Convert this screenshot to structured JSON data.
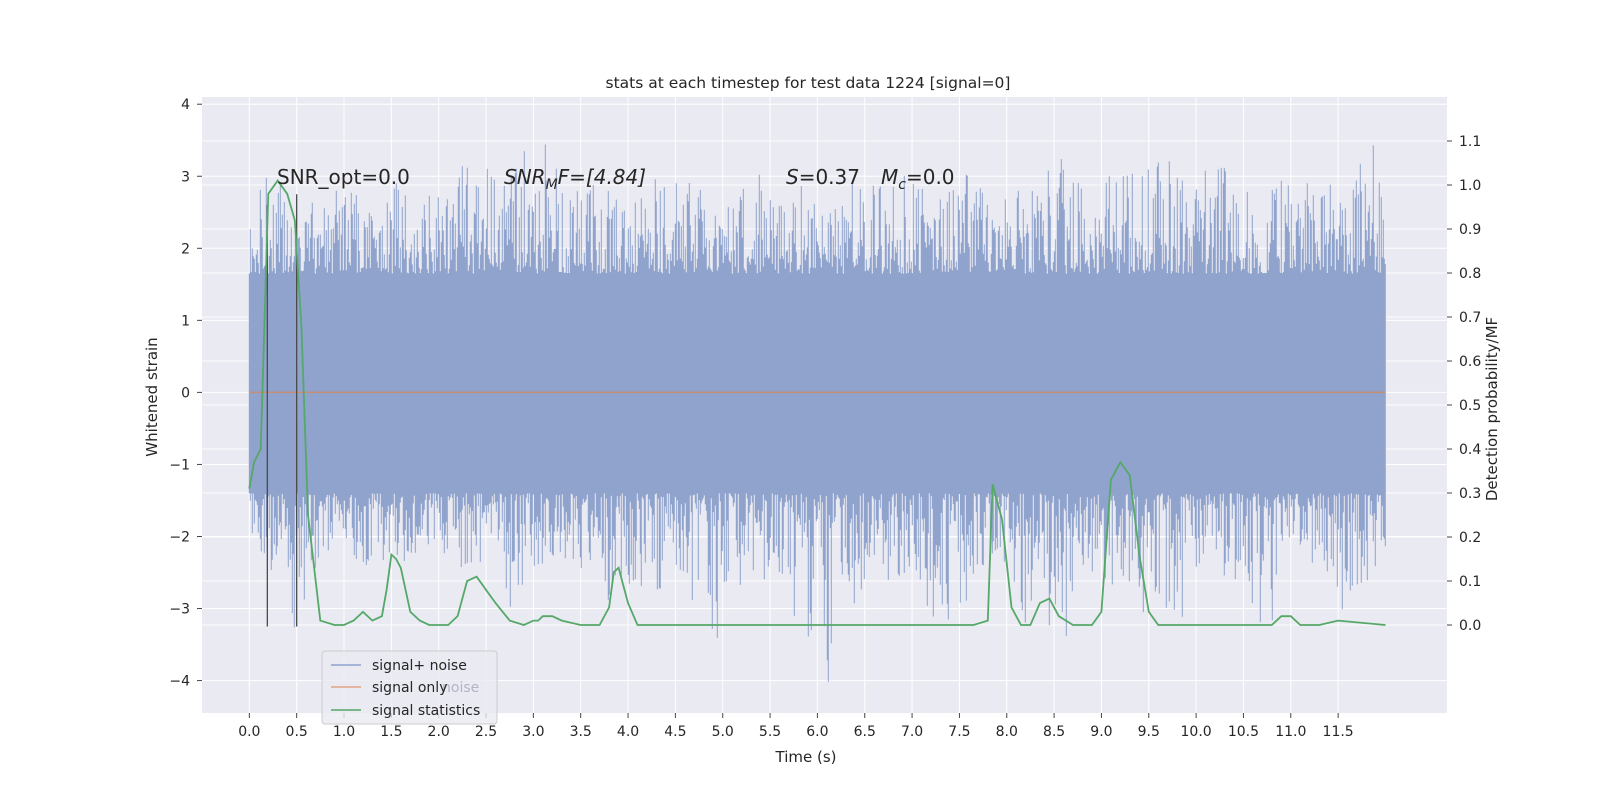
{
  "chart_data": {
    "type": "line",
    "title": "stats at each timestep for test data 1224 [signal=0]",
    "xlabel": "Time (s)",
    "ylabel_left": "Whitened strain",
    "ylabel_right": "Detection probability/MF",
    "xlim": [
      -0.5,
      12.65
    ],
    "ylim_left": [
      -4.45,
      4.1
    ],
    "ylim_right": [
      -0.2,
      1.2
    ],
    "xticks": [
      0.0,
      0.5,
      1.0,
      1.5,
      2.0,
      2.5,
      3.0,
      3.5,
      4.0,
      4.5,
      5.0,
      5.5,
      6.0,
      6.5,
      7.0,
      7.5,
      8.0,
      8.5,
      9.0,
      9.5,
      10.0,
      10.5,
      11.0,
      11.5
    ],
    "xtick_labels": [
      "0.0",
      "0.5",
      "1.0",
      "1.5",
      "2.0",
      "2.5",
      "3.0",
      "3.5",
      "4.0",
      "4.5",
      "5.0",
      "5.5",
      "6.0",
      "6.5",
      "7.0",
      "7.5",
      "8.0",
      "8.5",
      "9.0",
      "9.5",
      "10.0",
      "10.5",
      "11.0",
      "11.5"
    ],
    "yticks_left": [
      -4,
      -3,
      -2,
      -1,
      0,
      1,
      2,
      3,
      4
    ],
    "ytick_labels_left": [
      "−4",
      "−3",
      "−2",
      "−1",
      "0",
      "1",
      "2",
      "3",
      "4"
    ],
    "yticks_right": [
      0.0,
      0.1,
      0.2,
      0.3,
      0.4,
      0.5,
      0.6,
      0.7,
      0.8,
      0.9,
      1.0,
      1.1
    ],
    "ytick_labels_right": [
      "0.0",
      "0.1",
      "0.2",
      "0.3",
      "0.4",
      "0.5",
      "0.6",
      "0.7",
      "0.8",
      "0.9",
      "1.0",
      "1.1"
    ],
    "grid": true,
    "legend_placement": "lower-left",
    "legend": [
      "signal+ noise",
      "signal only",
      "signal statistics"
    ],
    "legend_ghost_text": "noise",
    "annotations": {
      "snr_opt": "SNR_opt=0.0",
      "snr_mf_pre": "SNR",
      "snr_mf_sub": "M",
      "snr_mf_post": "F=[4.84]",
      "s_var": "S",
      "s_val": "=0.37",
      "mc_var": "M",
      "mc_sub": "c",
      "mc_val": "=0.0"
    },
    "series": [
      {
        "name": "signal+ noise",
        "axis": "left",
        "color": "#8fa3cc",
        "x_range": [
          0.0,
          12.0
        ],
        "band": {
          "lower": -1.4,
          "upper": 1.65
        },
        "upper_envelope": [
          [
            0.0,
            2.4
          ],
          [
            0.12,
            3.05
          ],
          [
            0.3,
            3.1
          ],
          [
            0.45,
            2.75
          ],
          [
            0.8,
            2.6
          ],
          [
            1.0,
            3.0
          ],
          [
            1.3,
            2.5
          ],
          [
            1.55,
            3.1
          ],
          [
            1.75,
            2.4
          ],
          [
            2.05,
            3.1
          ],
          [
            2.4,
            3.2
          ],
          [
            2.75,
            3.0
          ],
          [
            3.05,
            3.7
          ],
          [
            3.4,
            2.8
          ],
          [
            3.75,
            3.0
          ],
          [
            4.05,
            2.6
          ],
          [
            4.3,
            3.1
          ],
          [
            4.7,
            3.0
          ],
          [
            5.0,
            2.6
          ],
          [
            5.25,
            3.0
          ],
          [
            5.55,
            3.05
          ],
          [
            5.8,
            3.0
          ],
          [
            6.2,
            2.9
          ],
          [
            6.6,
            3.05
          ],
          [
            6.95,
            3.0
          ],
          [
            7.25,
            2.7
          ],
          [
            7.7,
            3.2
          ],
          [
            8.0,
            2.9
          ],
          [
            8.3,
            3.0
          ],
          [
            8.55,
            3.3
          ],
          [
            8.85,
            3.2
          ],
          [
            9.2,
            3.0
          ],
          [
            9.6,
            3.3
          ],
          [
            9.95,
            3.1
          ],
          [
            10.3,
            3.3
          ],
          [
            10.65,
            2.7
          ],
          [
            11.0,
            3.1
          ],
          [
            11.3,
            2.8
          ],
          [
            11.65,
            3.2
          ],
          [
            11.9,
            3.65
          ],
          [
            12.0,
            2.3
          ]
        ],
        "lower_envelope": [
          [
            0.0,
            -1.95
          ],
          [
            0.3,
            -2.7
          ],
          [
            0.5,
            -3.6
          ],
          [
            0.75,
            -2.2
          ],
          [
            1.1,
            -2.4
          ],
          [
            1.5,
            -2.5
          ],
          [
            1.85,
            -2.2
          ],
          [
            2.3,
            -2.5
          ],
          [
            2.6,
            -2.2
          ],
          [
            2.75,
            -3.0
          ],
          [
            3.0,
            -2.5
          ],
          [
            3.4,
            -2.3
          ],
          [
            3.8,
            -2.9
          ],
          [
            4.2,
            -3.1
          ],
          [
            4.5,
            -2.4
          ],
          [
            4.85,
            -3.6
          ],
          [
            5.25,
            -2.9
          ],
          [
            5.6,
            -2.6
          ],
          [
            5.95,
            -3.8
          ],
          [
            6.1,
            -4.1
          ],
          [
            6.5,
            -2.6
          ],
          [
            7.0,
            -2.8
          ],
          [
            7.35,
            -3.3
          ],
          [
            7.85,
            -2.4
          ],
          [
            8.05,
            -3.45
          ],
          [
            8.3,
            -3.2
          ],
          [
            8.5,
            -3.85
          ],
          [
            8.9,
            -2.5
          ],
          [
            9.3,
            -2.9
          ],
          [
            9.75,
            -3.6
          ],
          [
            10.05,
            -2.5
          ],
          [
            10.45,
            -2.7
          ],
          [
            10.75,
            -3.7
          ],
          [
            11.0,
            -2.2
          ],
          [
            11.4,
            -2.5
          ],
          [
            11.6,
            -3.3
          ],
          [
            11.8,
            -3.1
          ],
          [
            11.95,
            -2.3
          ],
          [
            12.0,
            -2.3
          ]
        ]
      },
      {
        "name": "signal only",
        "axis": "left",
        "color": "#dd8452",
        "x": [
          0.0,
          12.0
        ],
        "y": [
          0.0,
          0.0
        ]
      },
      {
        "name": "signal statistics",
        "axis": "right",
        "color": "#55a868",
        "x": [
          0.0,
          0.05,
          0.12,
          0.2,
          0.3,
          0.4,
          0.48,
          0.55,
          0.62,
          0.75,
          0.9,
          1.0,
          1.1,
          1.2,
          1.3,
          1.4,
          1.45,
          1.5,
          1.55,
          1.6,
          1.7,
          1.8,
          1.9,
          2.0,
          2.1,
          2.2,
          2.3,
          2.4,
          2.5,
          2.6,
          2.75,
          2.9,
          3.0,
          3.05,
          3.1,
          3.2,
          3.3,
          3.5,
          3.7,
          3.8,
          3.85,
          3.9,
          4.0,
          4.1,
          4.3,
          4.6,
          4.8,
          5.0,
          5.5,
          6.0,
          6.5,
          7.0,
          7.5,
          7.65,
          7.8,
          7.85,
          7.95,
          8.05,
          8.15,
          8.25,
          8.35,
          8.45,
          8.55,
          8.7,
          8.9,
          9.0,
          9.1,
          9.2,
          9.3,
          9.4,
          9.5,
          9.6,
          9.8,
          10.0,
          10.5,
          10.7,
          10.8,
          10.9,
          11.0,
          11.1,
          11.3,
          11.5,
          12.0
        ],
        "y": [
          0.31,
          0.37,
          0.4,
          0.98,
          1.01,
          0.98,
          0.92,
          0.68,
          0.25,
          0.01,
          0.0,
          0.0,
          0.01,
          0.03,
          0.01,
          0.02,
          0.08,
          0.16,
          0.15,
          0.13,
          0.03,
          0.01,
          0.0,
          0.0,
          0.0,
          0.02,
          0.1,
          0.11,
          0.08,
          0.05,
          0.01,
          0.0,
          0.01,
          0.01,
          0.02,
          0.02,
          0.01,
          0.0,
          0.0,
          0.04,
          0.12,
          0.13,
          0.05,
          0.0,
          0.0,
          0.0,
          0.0,
          0.0,
          0.0,
          0.0,
          0.0,
          0.0,
          0.0,
          0.0,
          0.01,
          0.32,
          0.24,
          0.04,
          0.0,
          0.0,
          0.05,
          0.06,
          0.02,
          0.0,
          0.0,
          0.03,
          0.33,
          0.37,
          0.34,
          0.16,
          0.03,
          0.0,
          0.0,
          0.0,
          0.0,
          0.0,
          0.0,
          0.02,
          0.02,
          0.0,
          0.0,
          0.01,
          0.0
        ]
      }
    ],
    "vlines": [
      {
        "x": 0.19,
        "y": [
          -3.25,
          2.6
        ]
      },
      {
        "x": 0.5,
        "y": [
          -3.25,
          2.75
        ]
      }
    ]
  }
}
